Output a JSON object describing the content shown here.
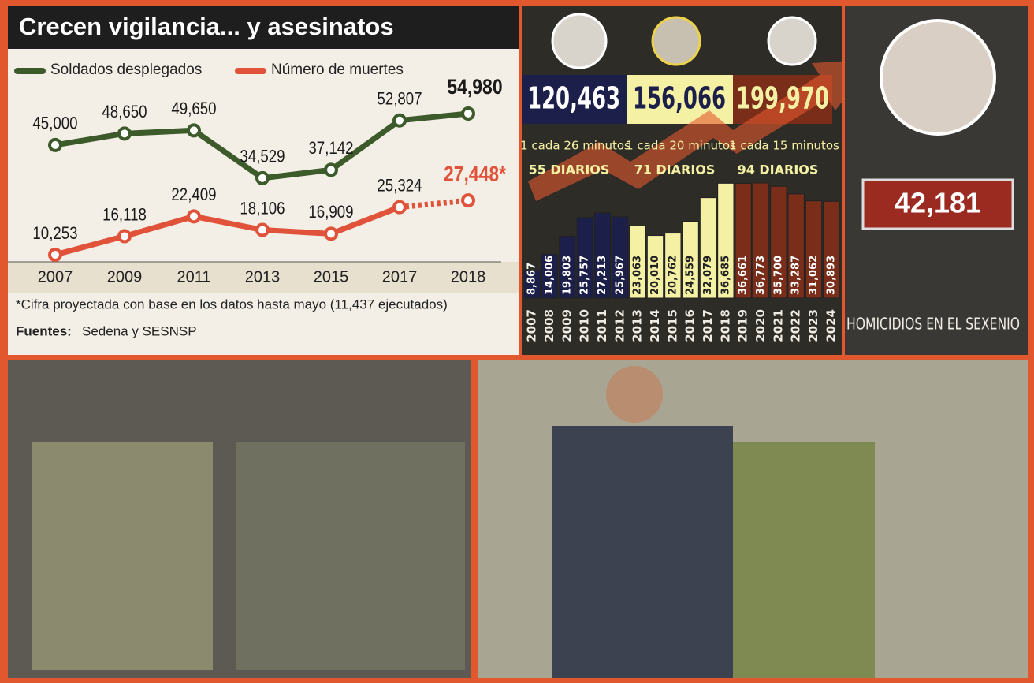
{
  "chart_data": [
    {
      "type": "line",
      "title": "Crecen vigilancia... y asesinatos",
      "categories": [
        "2007",
        "2009",
        "2011",
        "2013",
        "2015",
        "2017",
        "2018"
      ],
      "series": [
        {
          "name": "Soldados desplegados",
          "color": "#3d5a2a",
          "values": [
            45000,
            48650,
            49650,
            34529,
            37142,
            52807,
            54980
          ],
          "value_labels": [
            "45,000",
            "48,650",
            "49,650",
            "34,529",
            "37,142",
            "52,807",
            "54,980"
          ]
        },
        {
          "name": "Número de muertes",
          "color": "#e0533a",
          "dashed_last_segment": true,
          "values": [
            10253,
            16118,
            22409,
            18106,
            16909,
            25324,
            27448
          ],
          "value_labels": [
            "10,253",
            "16,118",
            "22,409",
            "18,106",
            "16,909",
            "25,324",
            "27,448*"
          ]
        }
      ],
      "note": "*Cifra proyectada con base en los datos hasta mayo (11,437 ejecutados)",
      "source_label": "Fuentes:",
      "source": "Sedena y SESNSP"
    },
    {
      "type": "bar",
      "categories": [
        "2007",
        "2008",
        "2009",
        "2010",
        "2011",
        "2012",
        "2013",
        "2014",
        "2015",
        "2016",
        "2017",
        "2018",
        "2019",
        "2020",
        "2021",
        "2022",
        "2023",
        "2024"
      ],
      "values": [
        8867,
        14006,
        19803,
        25757,
        27213,
        25967,
        23063,
        20010,
        20762,
        24559,
        32079,
        36685,
        36661,
        36773,
        35700,
        33287,
        31062,
        30893
      ],
      "value_labels": [
        "8,867",
        "14,006",
        "19,803",
        "25,757",
        "27,213",
        "25,967",
        "23,063",
        "20,010",
        "20,762",
        "24,559",
        "32,079",
        "36,685",
        "36,661",
        "36,773",
        "35,700",
        "33,287",
        "31,062",
        "30,893"
      ],
      "colors": [
        "#1c1f4a",
        "#1c1f4a",
        "#1c1f4a",
        "#1c1f4a",
        "#1c1f4a",
        "#1c1f4a",
        "#f4f1a4",
        "#f4f1a4",
        "#f4f1a4",
        "#f4f1a4",
        "#f4f1a4",
        "#f4f1a4",
        "#7a2e1a",
        "#7a2e1a",
        "#7a2e1a",
        "#7a2e1a",
        "#7a2e1a",
        "#7a2e1a"
      ],
      "groups": [
        {
          "total": "120,463",
          "rate": "1 cada 26 minutos",
          "daily": "55 DIARIOS"
        },
        {
          "total": "156,066",
          "rate": "1 cada 20 minutos",
          "daily": "71 DIARIOS"
        },
        {
          "total": "199,970",
          "rate": "1 cada 15 minutos",
          "daily": "94 DIARIOS"
        }
      ],
      "panel_total": "42,181",
      "panel_caption": "HOMICIDIOS EN EL SEXENIO"
    }
  ]
}
